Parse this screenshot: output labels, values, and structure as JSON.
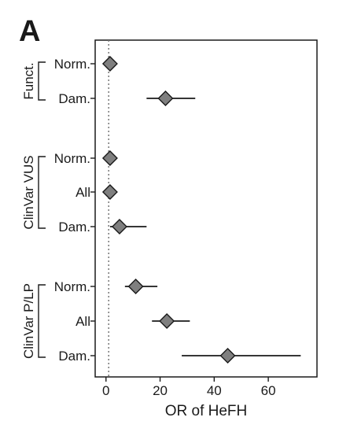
{
  "panel_label": "A",
  "chart_data": {
    "type": "forest",
    "xlabel": "OR of HeFH",
    "xticks": [
      0,
      20,
      40,
      60
    ],
    "xlim": [
      -4,
      78
    ],
    "reference_line": 1,
    "grid": false,
    "marker_color": "#7f7f7f",
    "groups": [
      {
        "label": "Funct.",
        "rows": [
          {
            "label": "Norm.",
            "or": 1.5,
            "ci": [
              1.0,
              2.0
            ]
          },
          {
            "label": "Dam.",
            "or": 22,
            "ci": [
              15,
              33
            ]
          }
        ]
      },
      {
        "label": "ClinVar VUS",
        "rows": [
          {
            "label": "Norm.",
            "or": 1.5,
            "ci": [
              1.0,
              2.0
            ]
          },
          {
            "label": "All",
            "or": 1.5,
            "ci": [
              1.0,
              2.0
            ]
          },
          {
            "label": "Dam.",
            "or": 5,
            "ci": [
              1.5,
              15
            ]
          }
        ]
      },
      {
        "label": "ClinVar P/LP",
        "rows": [
          {
            "label": "Norm.",
            "or": 11,
            "ci": [
              7,
              19
            ]
          },
          {
            "label": "All",
            "or": 22.5,
            "ci": [
              17,
              31
            ]
          },
          {
            "label": "Dam.",
            "or": 45,
            "ci": [
              28,
              72
            ]
          }
        ]
      }
    ]
  }
}
